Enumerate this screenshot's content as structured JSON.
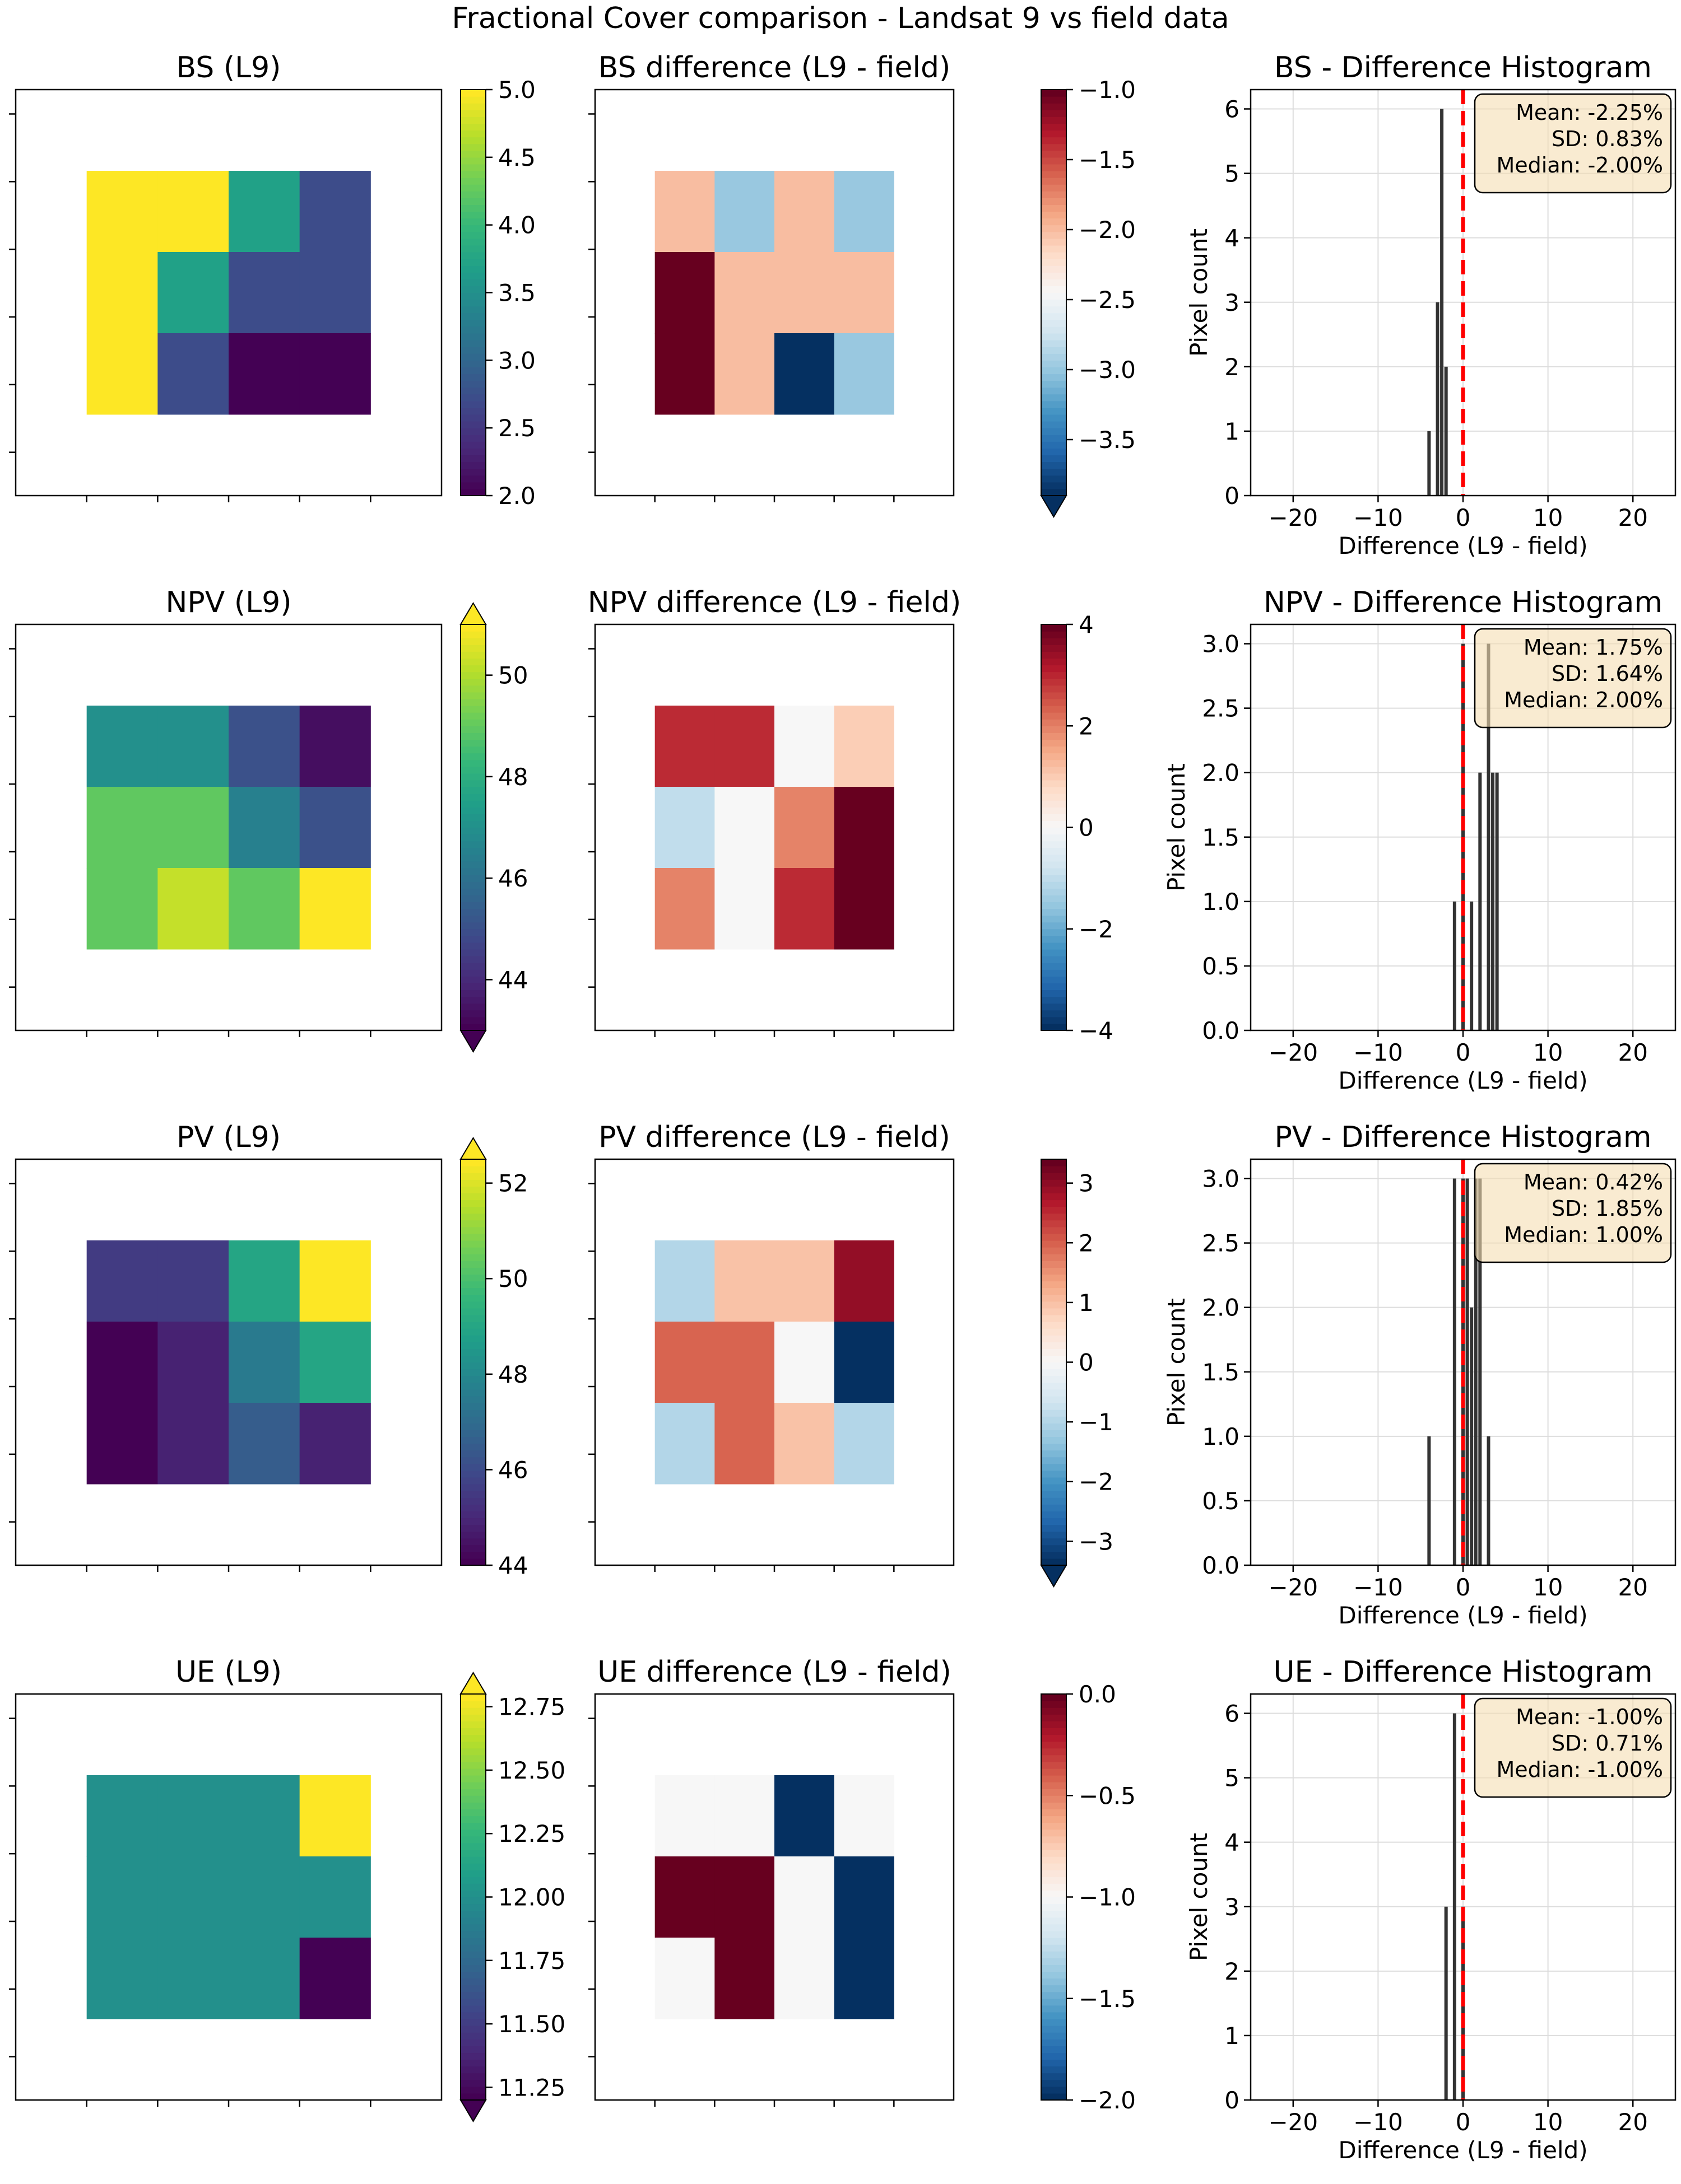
{
  "suptitle": "Fractional Cover comparison - Landsat 9 vs field data",
  "colors": {
    "hist_bar": "#333333",
    "zero_line": "#ff0000",
    "stats_box_fill": "#f5deb3",
    "grid": "#dddddd"
  },
  "hist_common": {
    "xlabel": "Difference (L9 - field)",
    "ylabel": "Pixel count",
    "xlim": [
      -25,
      25
    ],
    "xticks": [
      -20,
      -10,
      0,
      10,
      20
    ]
  },
  "chart_data": [
    {
      "name": "BS",
      "map": {
        "type": "heatmap",
        "title": "BS (L9)",
        "colormap": "viridis",
        "vmin": 2.0,
        "vmax": 5.0,
        "extend": "neither",
        "ticks": [
          2.0,
          2.5,
          3.0,
          3.5,
          4.0,
          4.5,
          5.0
        ],
        "tick_labels": [
          "2.0",
          "2.5",
          "3.0",
          "3.5",
          "4.0",
          "4.5",
          "5.0"
        ],
        "grid": [
          [
            5,
            5,
            3.7,
            2.7
          ],
          [
            5,
            3.7,
            2.7,
            2.7
          ],
          [
            5,
            2.7,
            2,
            2
          ]
        ]
      },
      "diff": {
        "type": "heatmap",
        "title": "BS difference (L9 - field)",
        "colormap": "RdBu_r",
        "vmin": -3.9,
        "vmax": -1.0,
        "extend": "min",
        "ticks": [
          -1.0,
          -1.5,
          -2.0,
          -2.5,
          -3.0,
          -3.5
        ],
        "tick_labels": [
          "−1.0",
          "−1.5",
          "−2.0",
          "−2.5",
          "−3.0",
          "−3.5"
        ],
        "grid": [
          [
            -2,
            -3,
            -2,
            -3
          ],
          [
            -1,
            -2,
            -2,
            -2
          ],
          [
            -1,
            -2,
            -4,
            -3
          ]
        ]
      },
      "hist": {
        "type": "bar",
        "title": "BS - Difference Histogram",
        "x": [
          -4,
          -3,
          -2.5,
          -2,
          -1.5
        ],
        "counts": [
          1,
          3,
          6,
          2,
          0
        ],
        "ylim": [
          0,
          6.3
        ],
        "yticks": [
          0,
          1,
          2,
          3,
          4,
          5,
          6
        ],
        "ytick_labels": [
          "0",
          "1",
          "2",
          "3",
          "4",
          "5",
          "6"
        ],
        "stats": [
          "Mean: -2.25%",
          "SD: 0.83%",
          "Median: -2.00%"
        ]
      }
    },
    {
      "name": "NPV",
      "map": {
        "type": "heatmap",
        "title": "NPV (L9)",
        "colormap": "viridis",
        "vmin": 43.0,
        "vmax": 51.0,
        "extend": "both",
        "ticks": [
          44,
          46,
          48,
          50
        ],
        "tick_labels": [
          "44",
          "46",
          "48",
          "50"
        ],
        "grid": [
          [
            47,
            47,
            45,
            43.3
          ],
          [
            49,
            49,
            46.5,
            45
          ],
          [
            49,
            50.3,
            49,
            51
          ]
        ]
      },
      "diff": {
        "type": "heatmap",
        "title": "NPV difference (L9 - field)",
        "colormap": "RdBu_r",
        "vmin": -4,
        "vmax": 4,
        "extend": "neither",
        "ticks": [
          4,
          2,
          0,
          -2,
          -4
        ],
        "tick_labels": [
          "4",
          "2",
          "0",
          "−2",
          "−4"
        ],
        "grid": [
          [
            3,
            3,
            0,
            1
          ],
          [
            -1,
            0,
            2,
            4
          ],
          [
            2,
            0,
            3,
            4
          ]
        ]
      },
      "hist": {
        "type": "bar",
        "title": "NPV - Difference Histogram",
        "x": [
          -1,
          0,
          1,
          2,
          3,
          3.5,
          4
        ],
        "counts": [
          1,
          3,
          1,
          2,
          3,
          2,
          2
        ],
        "ylim": [
          0,
          3.15
        ],
        "yticks": [
          0,
          0.5,
          1,
          1.5,
          2,
          2.5,
          3
        ],
        "ytick_labels": [
          "0.0",
          "0.5",
          "1.0",
          "1.5",
          "2.0",
          "2.5",
          "3.0"
        ],
        "stats": [
          "Mean: 1.75%",
          "SD: 1.64%",
          "Median: 2.00%"
        ]
      }
    },
    {
      "name": "PV",
      "map": {
        "type": "heatmap",
        "title": "PV (L9)",
        "colormap": "viridis",
        "vmin": 44.0,
        "vmax": 52.5,
        "extend": "max",
        "ticks": [
          44,
          46,
          48,
          50,
          52
        ],
        "tick_labels": [
          "44",
          "46",
          "48",
          "50",
          "52"
        ],
        "grid": [
          [
            45.5,
            45.5,
            49,
            52.5
          ],
          [
            44,
            44.8,
            47.5,
            49
          ],
          [
            44,
            44.8,
            46.5,
            44.8
          ]
        ]
      },
      "diff": {
        "type": "heatmap",
        "title": "PV difference (L9 - field)",
        "colormap": "RdBu_r",
        "vmin": -3.4,
        "vmax": 3.4,
        "extend": "min",
        "ticks": [
          3,
          2,
          1,
          0,
          -1,
          -2,
          -3
        ],
        "tick_labels": [
          "3",
          "2",
          "1",
          "0",
          "−1",
          "−2",
          "−3"
        ],
        "grid": [
          [
            -1,
            1,
            1,
            3
          ],
          [
            2,
            2,
            0,
            -4
          ],
          [
            -1,
            2,
            1,
            -1
          ]
        ]
      },
      "hist": {
        "type": "bar",
        "title": "PV - Difference Histogram",
        "x": [
          -4,
          -1,
          0,
          0.5,
          1,
          1.5,
          2,
          3
        ],
        "counts": [
          1,
          3,
          3,
          3,
          2,
          3,
          3,
          1
        ],
        "ylim": [
          0,
          3.15
        ],
        "yticks": [
          0,
          0.5,
          1,
          1.5,
          2,
          2.5,
          3
        ],
        "ytick_labels": [
          "0.0",
          "0.5",
          "1.0",
          "1.5",
          "2.0",
          "2.5",
          "3.0"
        ],
        "stats": [
          "Mean: 0.42%",
          "SD: 1.85%",
          "Median: 1.00%"
        ]
      }
    },
    {
      "name": "UE",
      "map": {
        "type": "heatmap",
        "title": "UE (L9)",
        "colormap": "viridis",
        "vmin": 11.2,
        "vmax": 12.8,
        "extend": "both",
        "ticks": [
          11.25,
          11.5,
          11.75,
          12.0,
          12.25,
          12.5,
          12.75
        ],
        "tick_labels": [
          "11.25",
          "11.50",
          "11.75",
          "12.00",
          "12.25",
          "12.50",
          "12.75"
        ],
        "grid": [
          [
            12,
            12,
            12,
            12.8
          ],
          [
            12,
            12,
            12,
            12
          ],
          [
            12,
            12,
            12,
            11.2
          ]
        ]
      },
      "diff": {
        "type": "heatmap",
        "title": "UE difference (L9 - field)",
        "colormap": "RdBu_r",
        "vmin": -2.0,
        "vmax": 0.0,
        "extend": "neither",
        "ticks": [
          0.0,
          -0.5,
          -1.0,
          -1.5,
          -2.0
        ],
        "tick_labels": [
          "0.0",
          "−0.5",
          "−1.0",
          "−1.5",
          "−2.0"
        ],
        "grid": [
          [
            -1,
            -1,
            -2,
            -1
          ],
          [
            0,
            0,
            -1,
            -2
          ],
          [
            -1,
            0,
            -1,
            -2
          ]
        ]
      },
      "hist": {
        "type": "bar",
        "title": "UE - Difference Histogram",
        "x": [
          -2,
          -1.5,
          -1,
          -0.5,
          0
        ],
        "counts": [
          3,
          0,
          6,
          0,
          3
        ],
        "ylim": [
          0,
          6.3
        ],
        "yticks": [
          0,
          1,
          2,
          3,
          4,
          5,
          6
        ],
        "ytick_labels": [
          "0",
          "1",
          "2",
          "3",
          "4",
          "5",
          "6"
        ],
        "stats": [
          "Mean: -1.00%",
          "SD: 0.71%",
          "Median: -1.00%"
        ]
      }
    }
  ]
}
